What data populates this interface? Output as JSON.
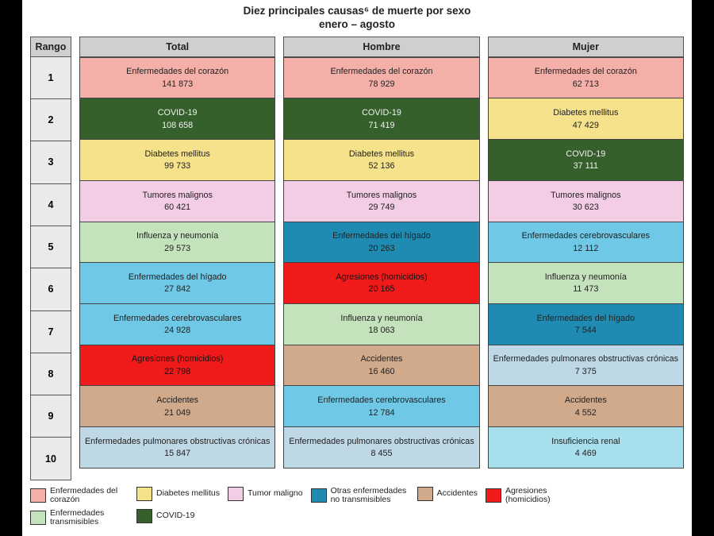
{
  "title_line1": "Diez principales causas⁶ de muerte por sexo",
  "title_line2": "enero – agosto",
  "palette": {
    "heart": "#f4b0a8",
    "diabetes": "#f6e28b",
    "tumor": "#f3cce5",
    "ncd_other": "#1f8bb3",
    "accidents": "#d1a98b",
    "homicide": "#f01a1a",
    "communicable": "#c4e2bb",
    "covid": "#35602b",
    "ncd_light": "#6ec8e6",
    "ncd_pale": "#bfd8e6",
    "renal": "#a7e0ec"
  },
  "text_colors": {
    "on_light": "#222222",
    "on_dark": "#111111",
    "on_covid": "#f2f2f2"
  },
  "header": {
    "rank": "Rango",
    "total": "Total",
    "men": "Hombre",
    "women": "Mujer"
  },
  "ranks": [
    "1",
    "2",
    "3",
    "4",
    "5",
    "6",
    "7",
    "8",
    "9",
    "10"
  ],
  "columns": {
    "total": [
      {
        "label": "Enfermedades del corazón",
        "value": "141 873",
        "color": "heart",
        "text": "on_light"
      },
      {
        "label": "COVID-19",
        "value": "108 658",
        "color": "covid",
        "text": "on_covid"
      },
      {
        "label": "Diabetes mellitus",
        "value": "99 733",
        "color": "diabetes",
        "text": "on_light"
      },
      {
        "label": "Tumores malignos",
        "value": "60 421",
        "color": "tumor",
        "text": "on_light"
      },
      {
        "label": "Influenza y neumonía",
        "value": "29 573",
        "color": "communicable",
        "text": "on_light"
      },
      {
        "label": "Enfermedades del hígado",
        "value": "27 842",
        "color": "ncd_light",
        "text": "on_light"
      },
      {
        "label": "Enfermedades cerebrovasculares",
        "value": "24 928",
        "color": "ncd_light",
        "text": "on_light"
      },
      {
        "label": "Agresiones (homicidios)",
        "value": "22 798",
        "color": "homicide",
        "text": "on_dark"
      },
      {
        "label": "Accidentes",
        "value": "21 049",
        "color": "accidents",
        "text": "on_light"
      },
      {
        "label": "Enfermedades pulmonares obstructivas crónicas",
        "value": "15 847",
        "color": "ncd_pale",
        "text": "on_light"
      }
    ],
    "men": [
      {
        "label": "Enfermedades del corazón",
        "value": "78 929",
        "color": "heart",
        "text": "on_light"
      },
      {
        "label": "COVID-19",
        "value": "71 419",
        "color": "covid",
        "text": "on_covid"
      },
      {
        "label": "Diabetes mellitus",
        "value": "52 136",
        "color": "diabetes",
        "text": "on_light"
      },
      {
        "label": "Tumores malignos",
        "value": "29 749",
        "color": "tumor",
        "text": "on_light"
      },
      {
        "label": "Enfermedades del hígado",
        "value": "20 263",
        "color": "ncd_other",
        "text": "on_light"
      },
      {
        "label": "Agresiones (homicidios)",
        "value": "20 165",
        "color": "homicide",
        "text": "on_dark"
      },
      {
        "label": "Influenza y neumonía",
        "value": "18 063",
        "color": "communicable",
        "text": "on_light"
      },
      {
        "label": "Accidentes",
        "value": "16 460",
        "color": "accidents",
        "text": "on_light"
      },
      {
        "label": "Enfermedades cerebrovasculares",
        "value": "12 784",
        "color": "ncd_light",
        "text": "on_light"
      },
      {
        "label": "Enfermedades pulmonares obstructivas crónicas",
        "value": "8 455",
        "color": "ncd_pale",
        "text": "on_light"
      }
    ],
    "women": [
      {
        "label": "Enfermedades del corazón",
        "value": "62 713",
        "color": "heart",
        "text": "on_light"
      },
      {
        "label": "Diabetes mellitus",
        "value": "47 429",
        "color": "diabetes",
        "text": "on_light"
      },
      {
        "label": "COVID-19",
        "value": "37 111",
        "color": "covid",
        "text": "on_covid"
      },
      {
        "label": "Tumores malignos",
        "value": "30 623",
        "color": "tumor",
        "text": "on_light"
      },
      {
        "label": "Enfermedades cerebrovasculares",
        "value": "12 112",
        "color": "ncd_light",
        "text": "on_light"
      },
      {
        "label": "Influenza y neumonía",
        "value": "11 473",
        "color": "communicable",
        "text": "on_light"
      },
      {
        "label": "Enfermedades del hígado",
        "value": "7 544",
        "color": "ncd_other",
        "text": "on_light"
      },
      {
        "label": "Enfermedades pulmonares obstructivas crónicas",
        "value": "7 375",
        "color": "ncd_pale",
        "text": "on_light"
      },
      {
        "label": "Accidentes",
        "value": "4 552",
        "color": "accidents",
        "text": "on_light"
      },
      {
        "label": "Insuficiencia renal",
        "value": "4 469",
        "color": "renal",
        "text": "on_light"
      }
    ]
  },
  "legend": [
    {
      "label": "Enfermedades del corazón",
      "color": "heart"
    },
    {
      "label": "Diabetes mellitus",
      "color": "diabetes"
    },
    {
      "label": "Tumor maligno",
      "color": "tumor"
    },
    {
      "label": "Otras enfermedades no transmisibles",
      "color": "ncd_other"
    },
    {
      "label": "Accidentes",
      "color": "accidents"
    },
    {
      "label": "Agresiones (homicidios)",
      "color": "homicide"
    },
    {
      "label": "Enfermedades transmisibles",
      "color": "communicable"
    },
    {
      "label": "COVID-19",
      "color": "covid"
    }
  ]
}
